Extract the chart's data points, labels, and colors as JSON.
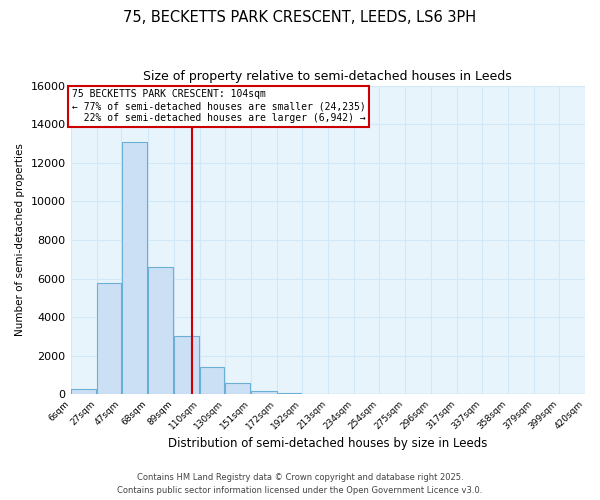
{
  "title": "75, BECKETTS PARK CRESCENT, LEEDS, LS6 3PH",
  "subtitle": "Size of property relative to semi-detached houses in Leeds",
  "xlabel": "Distribution of semi-detached houses by size in Leeds",
  "ylabel": "Number of semi-detached properties",
  "bin_edges": [
    6,
    27,
    47,
    68,
    89,
    110,
    130,
    151,
    172,
    192,
    213,
    234,
    254,
    275,
    296,
    317,
    337,
    358,
    379,
    399,
    420
  ],
  "bin_counts": [
    300,
    5800,
    13100,
    6600,
    3050,
    1450,
    620,
    200,
    100,
    0,
    0,
    0,
    0,
    0,
    0,
    0,
    0,
    0,
    0,
    0
  ],
  "property_size": 104,
  "bar_facecolor": "#cce0f5",
  "bar_edgecolor": "#6baed6",
  "vline_color": "#cc0000",
  "background_color": "#ffffff",
  "plot_bg_color": "#e8f4fc",
  "grid_color": "#d0e8f8",
  "annotation_text": "75 BECKETTS PARK CRESCENT: 104sqm\n← 77% of semi-detached houses are smaller (24,235)\n  22% of semi-detached houses are larger (6,942) →",
  "footer_line1": "Contains HM Land Registry data © Crown copyright and database right 2025.",
  "footer_line2": "Contains public sector information licensed under the Open Government Licence v3.0.",
  "ylim": [
    0,
    16000
  ],
  "yticks": [
    0,
    2000,
    4000,
    6000,
    8000,
    10000,
    12000,
    14000,
    16000
  ]
}
